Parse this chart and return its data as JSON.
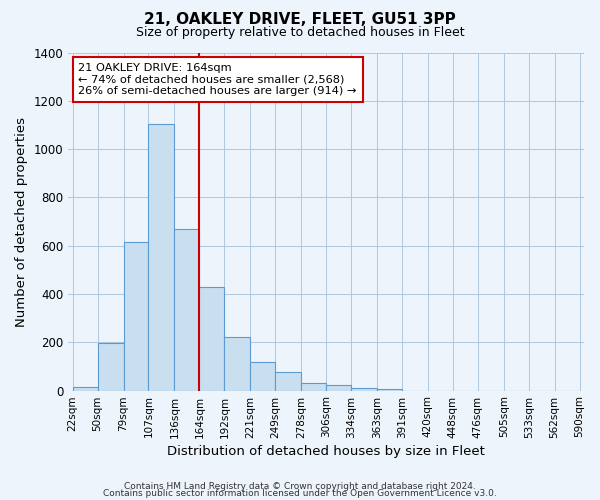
{
  "title": "21, OAKLEY DRIVE, FLEET, GU51 3PP",
  "subtitle": "Size of property relative to detached houses in Fleet",
  "xlabel": "Distribution of detached houses by size in Fleet",
  "ylabel": "Number of detached properties",
  "footer_line1": "Contains HM Land Registry data © Crown copyright and database right 2024.",
  "footer_line2": "Contains public sector information licensed under the Open Government Licence v3.0.",
  "bin_labels": [
    "22sqm",
    "50sqm",
    "79sqm",
    "107sqm",
    "136sqm",
    "164sqm",
    "192sqm",
    "221sqm",
    "249sqm",
    "278sqm",
    "306sqm",
    "334sqm",
    "363sqm",
    "391sqm",
    "420sqm",
    "448sqm",
    "476sqm",
    "505sqm",
    "533sqm",
    "562sqm",
    "590sqm"
  ],
  "bin_edges": [
    22,
    50,
    79,
    107,
    136,
    164,
    192,
    221,
    249,
    278,
    306,
    334,
    363,
    391,
    420,
    448,
    476,
    505,
    533,
    562,
    590
  ],
  "bar_heights": [
    15,
    195,
    615,
    1105,
    670,
    430,
    220,
    120,
    75,
    30,
    25,
    10,
    5,
    0,
    0,
    0,
    0,
    0,
    0,
    0
  ],
  "bar_color": "#c9dff0",
  "bar_edge_color": "#5b9bd5",
  "vline_x": 164,
  "vline_color": "#cc0000",
  "annotation_title": "21 OAKLEY DRIVE: 164sqm",
  "annotation_line1": "← 74% of detached houses are smaller (2,568)",
  "annotation_line2": "26% of semi-detached houses are larger (914) →",
  "annotation_box_facecolor": "#ffffff",
  "annotation_box_edgecolor": "#cc0000",
  "ylim": [
    0,
    1400
  ],
  "yticks": [
    0,
    200,
    400,
    600,
    800,
    1000,
    1200,
    1400
  ],
  "background_color": "#eef4fb",
  "plot_bg_color": "#eef4fb",
  "grid_color": "#aec8e0"
}
